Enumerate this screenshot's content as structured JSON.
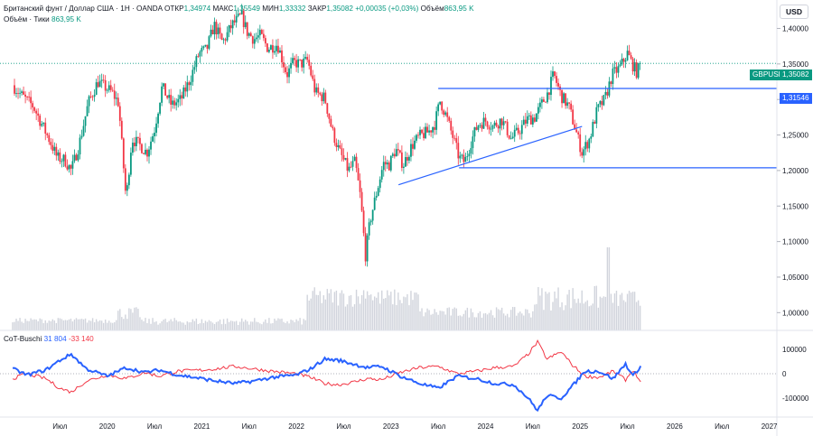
{
  "header": {
    "symbol": "Британский фунт / Доллар США · 1H · OANDA",
    "open_label": "ОТКР",
    "open": "1,34974",
    "high_label": "МАКС",
    "high": "1,35549",
    "low_label": "МИН",
    "low": "1,33332",
    "close_label": "ЗАКР",
    "close": "1,35082",
    "change": "+0,00035 (+0,03%)",
    "volume_label": "Объём",
    "volume": "863,95 K",
    "ticks_label": "Объём · Тики",
    "ticks": "863,95 K"
  },
  "currency_label": "USD",
  "price_tags": {
    "symbol_tag": "GBPUSD",
    "last_price": "1,35082",
    "level_price": "1,31546",
    "colors": {
      "symbol_tag": "#089981",
      "level": "#2962ff"
    }
  },
  "cot": {
    "name": "CoT-Buschi",
    "value_blue": "31 804",
    "value_red": "-33 140"
  },
  "chart_data": {
    "type": "candlestick",
    "instrument": "GBPUSD",
    "price_axis": {
      "ticks": [
        "1,40000",
        "1,35000",
        "1,30000",
        "1,25000",
        "1,20000",
        "1,15000",
        "1,10000",
        "1,05000",
        "1,00000"
      ],
      "range": [
        0.975,
        1.44
      ]
    },
    "time_axis": {
      "ticks": [
        "Июл",
        "2020",
        "Июл",
        "2021",
        "Июл",
        "2022",
        "Июл",
        "2023",
        "Июл",
        "2024",
        "Июл",
        "2025",
        "Июл",
        "2026",
        "Июл",
        "2027"
      ]
    },
    "indicator_axis": {
      "ticks": [
        "100000",
        "0",
        "-100000"
      ],
      "range": [
        -175000,
        175000
      ]
    },
    "horizontal_levels": [
      1.31546,
      1.20382
    ],
    "trendline": {
      "from": {
        "t": 2023.08,
        "price": 1.18
      },
      "to": {
        "t": 2025.02,
        "price": 1.262
      }
    },
    "resistance_segment": {
      "from_t": 2023.5,
      "to_t": 2027.7,
      "price": 1.31546
    },
    "support_segment": {
      "from_t": 2023.72,
      "to_t": 2027.7,
      "price": 1.20382
    },
    "last_price_line": 1.35082,
    "colors": {
      "up": "#089981",
      "down": "#f23645",
      "line": "#2962ff",
      "volume": "#d1d4dc",
      "cot_blue": "#2962ff",
      "cot_red": "#f23645"
    },
    "close_path": [
      [
        2019.0,
        1.32
      ],
      [
        2019.1,
        1.305
      ],
      [
        2019.22,
        1.29
      ],
      [
        2019.32,
        1.262
      ],
      [
        2019.4,
        1.24
      ],
      [
        2019.47,
        1.218
      ],
      [
        2019.55,
        1.215
      ],
      [
        2019.62,
        1.2
      ],
      [
        2019.7,
        1.235
      ],
      [
        2019.8,
        1.295
      ],
      [
        2019.9,
        1.325
      ],
      [
        2019.97,
        1.318
      ],
      [
        2020.05,
        1.31
      ],
      [
        2020.12,
        1.295
      ],
      [
        2020.2,
        1.158
      ],
      [
        2020.26,
        1.245
      ],
      [
        2020.35,
        1.235
      ],
      [
        2020.42,
        1.225
      ],
      [
        2020.5,
        1.258
      ],
      [
        2020.58,
        1.318
      ],
      [
        2020.68,
        1.292
      ],
      [
        2020.78,
        1.3
      ],
      [
        2020.88,
        1.33
      ],
      [
        2020.97,
        1.365
      ],
      [
        2021.05,
        1.37
      ],
      [
        2021.13,
        1.405
      ],
      [
        2021.22,
        1.38
      ],
      [
        2021.32,
        1.405
      ],
      [
        2021.42,
        1.418
      ],
      [
        2021.48,
        1.395
      ],
      [
        2021.55,
        1.385
      ],
      [
        2021.62,
        1.39
      ],
      [
        2021.7,
        1.372
      ],
      [
        2021.8,
        1.378
      ],
      [
        2021.9,
        1.335
      ],
      [
        2021.97,
        1.352
      ],
      [
        2022.05,
        1.35
      ],
      [
        2022.12,
        1.355
      ],
      [
        2022.2,
        1.31
      ],
      [
        2022.3,
        1.302
      ],
      [
        2022.38,
        1.255
      ],
      [
        2022.45,
        1.228
      ],
      [
        2022.55,
        1.2
      ],
      [
        2022.62,
        1.212
      ],
      [
        2022.68,
        1.16
      ],
      [
        2022.73,
        1.08
      ],
      [
        2022.78,
        1.13
      ],
      [
        2022.85,
        1.17
      ],
      [
        2022.92,
        1.21
      ],
      [
        2022.98,
        1.208
      ],
      [
        2023.05,
        1.23
      ],
      [
        2023.13,
        1.208
      ],
      [
        2023.22,
        1.235
      ],
      [
        2023.3,
        1.248
      ],
      [
        2023.4,
        1.255
      ],
      [
        2023.46,
        1.265
      ],
      [
        2023.52,
        1.298
      ],
      [
        2023.58,
        1.278
      ],
      [
        2023.66,
        1.245
      ],
      [
        2023.72,
        1.218
      ],
      [
        2023.78,
        1.212
      ],
      [
        2023.85,
        1.242
      ],
      [
        2023.92,
        1.265
      ],
      [
        2024.0,
        1.27
      ],
      [
        2024.08,
        1.262
      ],
      [
        2024.17,
        1.272
      ],
      [
        2024.27,
        1.245
      ],
      [
        2024.35,
        1.255
      ],
      [
        2024.44,
        1.272
      ],
      [
        2024.52,
        1.275
      ],
      [
        2024.58,
        1.29
      ],
      [
        2024.66,
        1.31
      ],
      [
        2024.72,
        1.335
      ],
      [
        2024.8,
        1.305
      ],
      [
        2024.88,
        1.29
      ],
      [
        2024.95,
        1.258
      ],
      [
        2025.02,
        1.225
      ],
      [
        2025.1,
        1.245
      ],
      [
        2025.18,
        1.285
      ],
      [
        2025.26,
        1.3
      ],
      [
        2025.34,
        1.335
      ],
      [
        2025.42,
        1.345
      ],
      [
        2025.5,
        1.365
      ],
      [
        2025.55,
        1.35
      ],
      [
        2025.6,
        1.338
      ],
      [
        2025.64,
        1.35
      ]
    ],
    "cot_blue": [
      [
        2019.0,
        20000
      ],
      [
        2019.15,
        -5000
      ],
      [
        2019.35,
        15000
      ],
      [
        2019.5,
        55000
      ],
      [
        2019.62,
        80000
      ],
      [
        2019.78,
        20000
      ],
      [
        2020.0,
        -10000
      ],
      [
        2020.2,
        25000
      ],
      [
        2020.4,
        5000
      ],
      [
        2020.55,
        15000
      ],
      [
        2020.75,
        -5000
      ],
      [
        2021.0,
        -20000
      ],
      [
        2021.15,
        -30000
      ],
      [
        2021.35,
        -40000
      ],
      [
        2021.55,
        -30000
      ],
      [
        2021.75,
        -15000
      ],
      [
        2022.0,
        -5000
      ],
      [
        2022.15,
        20000
      ],
      [
        2022.3,
        60000
      ],
      [
        2022.45,
        55000
      ],
      [
        2022.6,
        40000
      ],
      [
        2022.75,
        25000
      ],
      [
        2022.9,
        30000
      ],
      [
        2023.1,
        -10000
      ],
      [
        2023.3,
        -40000
      ],
      [
        2023.5,
        -60000
      ],
      [
        2023.7,
        -10000
      ],
      [
        2023.9,
        -20000
      ],
      [
        2024.1,
        -40000
      ],
      [
        2024.3,
        -45000
      ],
      [
        2024.45,
        -100000
      ],
      [
        2024.55,
        -150000
      ],
      [
        2024.65,
        -90000
      ],
      [
        2024.8,
        -100000
      ],
      [
        2024.92,
        -50000
      ],
      [
        2025.05,
        10000
      ],
      [
        2025.2,
        10000
      ],
      [
        2025.35,
        -20000
      ],
      [
        2025.48,
        40000
      ],
      [
        2025.56,
        -10000
      ],
      [
        2025.64,
        31804
      ]
    ],
    "cot_red": [
      [
        2019.0,
        -20000
      ],
      [
        2019.15,
        0
      ],
      [
        2019.35,
        -20000
      ],
      [
        2019.5,
        -60000
      ],
      [
        2019.62,
        -75000
      ],
      [
        2019.78,
        -30000
      ],
      [
        2020.0,
        -5000
      ],
      [
        2020.2,
        -20000
      ],
      [
        2020.4,
        5000
      ],
      [
        2020.55,
        -10000
      ],
      [
        2020.75,
        10000
      ],
      [
        2021.0,
        15000
      ],
      [
        2021.15,
        20000
      ],
      [
        2021.35,
        30000
      ],
      [
        2021.55,
        20000
      ],
      [
        2021.75,
        10000
      ],
      [
        2022.0,
        0
      ],
      [
        2022.15,
        -15000
      ],
      [
        2022.3,
        -40000
      ],
      [
        2022.45,
        -45000
      ],
      [
        2022.6,
        -35000
      ],
      [
        2022.75,
        -20000
      ],
      [
        2022.9,
        -25000
      ],
      [
        2023.1,
        5000
      ],
      [
        2023.3,
        25000
      ],
      [
        2023.5,
        30000
      ],
      [
        2023.7,
        0
      ],
      [
        2023.9,
        10000
      ],
      [
        2024.1,
        25000
      ],
      [
        2024.3,
        30000
      ],
      [
        2024.45,
        80000
      ],
      [
        2024.55,
        130000
      ],
      [
        2024.65,
        60000
      ],
      [
        2024.8,
        90000
      ],
      [
        2024.92,
        35000
      ],
      [
        2025.05,
        -10000
      ],
      [
        2025.2,
        -15000
      ],
      [
        2025.35,
        10000
      ],
      [
        2025.48,
        -25000
      ],
      [
        2025.56,
        15000
      ],
      [
        2025.64,
        -33140
      ]
    ]
  }
}
